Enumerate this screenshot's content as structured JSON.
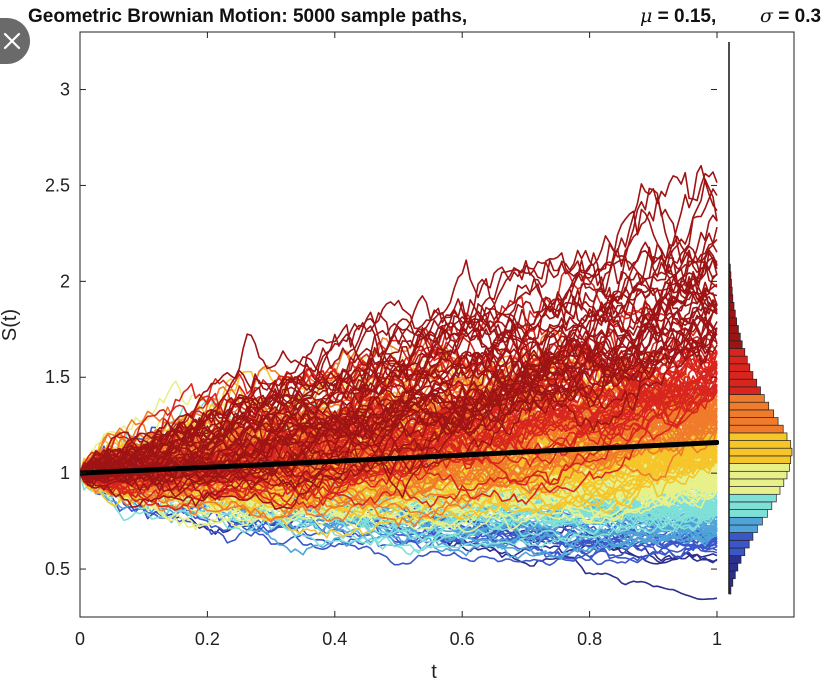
{
  "chart_data": {
    "type": "line",
    "title": "Geometric Brownian Motion: 5000 sample paths,",
    "params": [
      {
        "symbol": "μ",
        "value": " = 0.15,"
      },
      {
        "symbol": "σ",
        "value": " = 0.3"
      }
    ],
    "xlabel": "t",
    "ylabel": "S(t)",
    "xlim": [
      0,
      1
    ],
    "ylim": [
      0.25,
      3.3
    ],
    "x_ticks": [
      "0",
      "0.2",
      "0.4",
      "0.6",
      "0.8",
      "1"
    ],
    "x_tick_values": [
      0,
      0.2,
      0.4,
      0.6,
      0.8,
      1
    ],
    "y_ticks": [
      "0.5",
      "1",
      "1.5",
      "2",
      "2.5",
      "3"
    ],
    "y_tick_values": [
      0.5,
      1,
      1.5,
      2,
      2.5,
      3
    ],
    "grid": false,
    "series": [
      {
        "values": [
          [
            0,
            1.0
          ],
          [
            0.25,
            1.038
          ],
          [
            0.5,
            1.078
          ],
          [
            0.75,
            1.119
          ],
          [
            1,
            1.16
          ]
        ]
      }
    ],
    "path_count": 5000,
    "colormap": [
      "#2b2f8e",
      "#3a56c8",
      "#4fa3d8",
      "#7fe0d8",
      "#e8f08a",
      "#f5c52a",
      "#f07b2a",
      "#d8261e",
      "#9e1414"
    ],
    "histogram": {
      "orientation": "horizontal",
      "bins": [
        {
          "y": 0.39,
          "count": 0.03
        },
        {
          "y": 0.43,
          "count": 0.06
        },
        {
          "y": 0.47,
          "count": 0.1
        },
        {
          "y": 0.51,
          "count": 0.14
        },
        {
          "y": 0.55,
          "count": 0.19
        },
        {
          "y": 0.59,
          "count": 0.25
        },
        {
          "y": 0.63,
          "count": 0.32
        },
        {
          "y": 0.67,
          "count": 0.38
        },
        {
          "y": 0.71,
          "count": 0.45
        },
        {
          "y": 0.75,
          "count": 0.53
        },
        {
          "y": 0.79,
          "count": 0.61
        },
        {
          "y": 0.83,
          "count": 0.68
        },
        {
          "y": 0.87,
          "count": 0.75
        },
        {
          "y": 0.91,
          "count": 0.81
        },
        {
          "y": 0.95,
          "count": 0.87
        },
        {
          "y": 0.99,
          "count": 0.92
        },
        {
          "y": 1.03,
          "count": 0.96
        },
        {
          "y": 1.07,
          "count": 0.98
        },
        {
          "y": 1.11,
          "count": 1.0
        },
        {
          "y": 1.15,
          "count": 0.98
        },
        {
          "y": 1.19,
          "count": 0.92
        },
        {
          "y": 1.23,
          "count": 0.86
        },
        {
          "y": 1.27,
          "count": 0.78
        },
        {
          "y": 1.31,
          "count": 0.71
        },
        {
          "y": 1.35,
          "count": 0.63
        },
        {
          "y": 1.39,
          "count": 0.56
        },
        {
          "y": 1.43,
          "count": 0.5
        },
        {
          "y": 1.47,
          "count": 0.44
        },
        {
          "y": 1.51,
          "count": 0.38
        },
        {
          "y": 1.55,
          "count": 0.33
        },
        {
          "y": 1.59,
          "count": 0.29
        },
        {
          "y": 1.63,
          "count": 0.25
        },
        {
          "y": 1.67,
          "count": 0.21
        },
        {
          "y": 1.71,
          "count": 0.18
        },
        {
          "y": 1.75,
          "count": 0.15
        },
        {
          "y": 1.79,
          "count": 0.12
        },
        {
          "y": 1.83,
          "count": 0.1
        },
        {
          "y": 1.87,
          "count": 0.08
        },
        {
          "y": 1.91,
          "count": 0.06
        },
        {
          "y": 1.95,
          "count": 0.05
        },
        {
          "y": 1.99,
          "count": 0.04
        },
        {
          "y": 2.03,
          "count": 0.03
        },
        {
          "y": 2.07,
          "count": 0.02
        }
      ]
    }
  },
  "close_icon": "close-icon"
}
